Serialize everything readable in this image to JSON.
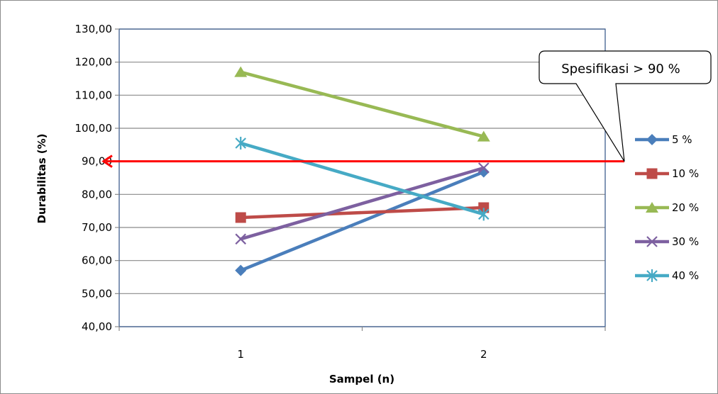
{
  "chart_data": {
    "type": "line",
    "title": "",
    "xlabel": "Sampel (n)",
    "ylabel": "Durabilitas  (%)",
    "categories": [
      "1",
      "2"
    ],
    "ylim": [
      40,
      130
    ],
    "yticks": [
      "40,00",
      "50,00",
      "60,00",
      "70,00",
      "80,00",
      "90,00",
      "100,00",
      "110,00",
      "120,00",
      "130,00"
    ],
    "grid": true,
    "legend_position": "right",
    "series": [
      {
        "name": "5 %",
        "values": [
          57.0,
          86.8
        ],
        "color": "#4a7ebb",
        "marker": "diamond"
      },
      {
        "name": "10 %",
        "values": [
          73.0,
          76.0
        ],
        "color": "#be4b48",
        "marker": "square"
      },
      {
        "name": "20 %",
        "values": [
          117.0,
          97.5
        ],
        "color": "#98b954",
        "marker": "triangle"
      },
      {
        "name": "30 %",
        "values": [
          66.5,
          88.0
        ],
        "color": "#7d60a0",
        "marker": "x"
      },
      {
        "name": "40 %",
        "values": [
          95.5,
          74.0
        ],
        "color": "#46aac5",
        "marker": "star"
      }
    ],
    "reference_line": {
      "value": 90,
      "color": "#ff0000"
    },
    "annotation": {
      "text": "Spesifikasi > 90 %"
    }
  }
}
